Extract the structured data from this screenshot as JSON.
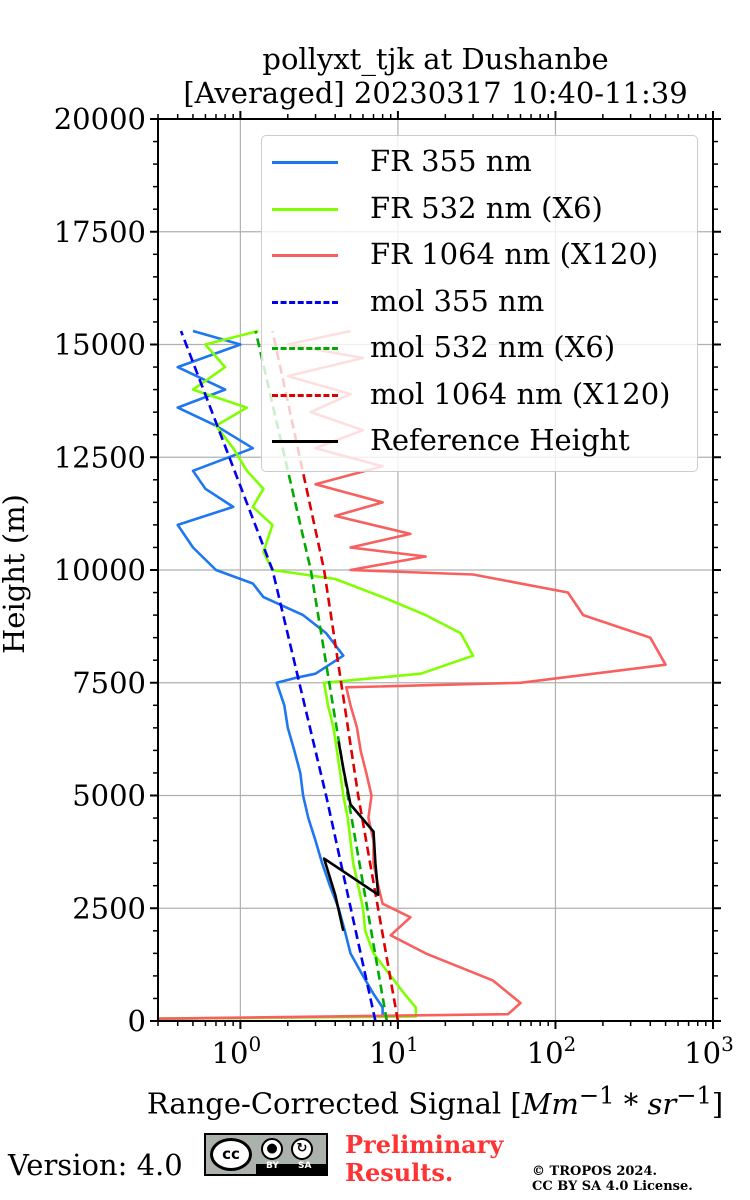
{
  "chart_data": {
    "type": "line",
    "title": [
      "pollyxt_tjk at Dushanbe",
      "[Averaged] 20230317 10:40-11:39"
    ],
    "xlabel": "Range-Corrected Signal",
    "xlabel_unit_html": "[<i>Mm</i><sup>−1</sup> <i>* sr</i><sup>−1</sup>]",
    "ylabel": "Height (m)",
    "xscale": "log",
    "xlim": [
      0.3,
      1000
    ],
    "ylim": [
      0,
      20000
    ],
    "x_ticks": [
      {
        "base": "10",
        "exp": "0",
        "value": 1
      },
      {
        "base": "10",
        "exp": "1",
        "value": 10
      },
      {
        "base": "10",
        "exp": "2",
        "value": 100
      },
      {
        "base": "10",
        "exp": "3",
        "value": 1000
      }
    ],
    "y_ticks": [
      "0",
      "2500",
      "5000",
      "7500",
      "10000",
      "12500",
      "15000",
      "17500",
      "20000"
    ],
    "grid": true,
    "legend_position": "top-right",
    "series": [
      {
        "name": "FR 355 nm",
        "color": "#1f77f0",
        "style": "solid",
        "points": [
          [
            0.3,
            50
          ],
          [
            8,
            100
          ],
          [
            8,
            300
          ],
          [
            7,
            600
          ],
          [
            6,
            1000
          ],
          [
            5,
            1500
          ],
          [
            4.6,
            2000
          ],
          [
            4.2,
            2500
          ],
          [
            3.7,
            3000
          ],
          [
            3.3,
            3500
          ],
          [
            3.0,
            4000
          ],
          [
            2.7,
            4500
          ],
          [
            2.5,
            5000
          ],
          [
            2.4,
            5500
          ],
          [
            2.2,
            6000
          ],
          [
            2.0,
            6500
          ],
          [
            1.9,
            7000
          ],
          [
            1.7,
            7500
          ],
          [
            2.2,
            7600
          ],
          [
            3.0,
            7700
          ],
          [
            4.5,
            8100
          ],
          [
            3.5,
            8600
          ],
          [
            2.5,
            9000
          ],
          [
            1.4,
            9400
          ],
          [
            1.2,
            9700
          ],
          [
            0.7,
            10000
          ],
          [
            0.5,
            10500
          ],
          [
            0.4,
            11000
          ],
          [
            0.9,
            11400
          ],
          [
            0.6,
            11800
          ],
          [
            0.5,
            12200
          ],
          [
            1.2,
            12700
          ],
          [
            0.7,
            13200
          ],
          [
            0.4,
            13600
          ],
          [
            0.8,
            14000
          ],
          [
            0.4,
            14500
          ],
          [
            1.0,
            15000
          ],
          [
            0.5,
            15300
          ]
        ]
      },
      {
        "name": "FR 532 nm (X6)",
        "color": "#80ff00",
        "style": "solid",
        "points": [
          [
            0.3,
            50
          ],
          [
            13,
            100
          ],
          [
            13,
            300
          ],
          [
            11,
            600
          ],
          [
            9,
            1000
          ],
          [
            7,
            1500
          ],
          [
            6.2,
            2000
          ],
          [
            6,
            2500
          ],
          [
            5.6,
            3000
          ],
          [
            5.2,
            3500
          ],
          [
            5,
            4000
          ],
          [
            4.8,
            4500
          ],
          [
            4.5,
            5000
          ],
          [
            4.3,
            5500
          ],
          [
            4.1,
            6000
          ],
          [
            3.9,
            6500
          ],
          [
            3.6,
            7000
          ],
          [
            3.4,
            7500
          ],
          [
            14,
            7700
          ],
          [
            30,
            8100
          ],
          [
            25,
            8600
          ],
          [
            15,
            9000
          ],
          [
            8,
            9400
          ],
          [
            4,
            9800
          ],
          [
            1.6,
            10000
          ],
          [
            1.4,
            10400
          ],
          [
            1.6,
            11000
          ],
          [
            1.2,
            11400
          ],
          [
            1.4,
            11800
          ],
          [
            1.1,
            12200
          ],
          [
            0.9,
            12700
          ],
          [
            0.7,
            13200
          ],
          [
            1.1,
            13600
          ],
          [
            0.5,
            14000
          ],
          [
            0.8,
            14500
          ],
          [
            0.6,
            15000
          ],
          [
            1.3,
            15300
          ]
        ]
      },
      {
        "name": "FR 1064 nm (X120)",
        "color": "#f86060",
        "style": "solid",
        "points": [
          [
            0.3,
            50
          ],
          [
            50,
            150
          ],
          [
            60,
            400
          ],
          [
            40,
            900
          ],
          [
            15,
            1500
          ],
          [
            9,
            1900
          ],
          [
            12,
            2300
          ],
          [
            8,
            2600
          ],
          [
            7.5,
            3000
          ],
          [
            7,
            3500
          ],
          [
            7,
            4000
          ],
          [
            6.5,
            4500
          ],
          [
            6.8,
            5000
          ],
          [
            6.3,
            5500
          ],
          [
            5.8,
            6000
          ],
          [
            5.5,
            6500
          ],
          [
            5,
            7000
          ],
          [
            4.7,
            7400
          ],
          [
            60,
            7500
          ],
          [
            500,
            7900
          ],
          [
            400,
            8500
          ],
          [
            150,
            9000
          ],
          [
            120,
            9500
          ],
          [
            30,
            9900
          ],
          [
            5,
            10000
          ],
          [
            15,
            10300
          ],
          [
            5,
            10500
          ],
          [
            12,
            10800
          ],
          [
            4,
            11200
          ],
          [
            8,
            11500
          ],
          [
            3,
            11900
          ],
          [
            8,
            12300
          ],
          [
            3,
            12700
          ],
          [
            6,
            13100
          ],
          [
            2.8,
            13500
          ],
          [
            5,
            13900
          ],
          [
            2,
            14300
          ],
          [
            6,
            14700
          ],
          [
            2,
            15000
          ],
          [
            5,
            15300
          ]
        ]
      },
      {
        "name": "mol 355 nm",
        "color": "#0000ee",
        "style": "dashed",
        "points": [
          [
            7.2,
            0
          ],
          [
            3.5,
            5000
          ],
          [
            1.6,
            10000
          ],
          [
            0.42,
            15300
          ]
        ]
      },
      {
        "name": "mol 532 nm (X6)",
        "color": "#00aa00",
        "style": "dashed",
        "points": [
          [
            8.5,
            0
          ],
          [
            4.8,
            5000
          ],
          [
            2.8,
            10000
          ],
          [
            1.25,
            15300
          ]
        ]
      },
      {
        "name": "mol 1064 nm (X120)",
        "color": "#dd0000",
        "style": "dashed",
        "points": [
          [
            10,
            0
          ],
          [
            5.6,
            5000
          ],
          [
            3.4,
            10000
          ],
          [
            1.6,
            15300
          ]
        ]
      },
      {
        "name": "Reference Height",
        "color": "#000000",
        "style": "solid",
        "points": [
          [
            4.5,
            2000
          ],
          [
            4.0,
            2800
          ],
          [
            3.4,
            3600
          ],
          [
            7.5,
            2800
          ],
          [
            7.2,
            3500
          ],
          [
            7.0,
            4200
          ],
          [
            5.0,
            4800
          ],
          [
            4.5,
            5600
          ],
          [
            4.2,
            6200
          ]
        ]
      }
    ]
  },
  "footer": {
    "version": "Version: 4.0",
    "license_badge": {
      "left": "cc",
      "by": "BY",
      "sa": "SA"
    },
    "preliminary": [
      "Preliminary",
      "Results."
    ],
    "copyright": [
      "© TROPOS 2024.",
      "CC BY SA 4.0 License."
    ]
  }
}
